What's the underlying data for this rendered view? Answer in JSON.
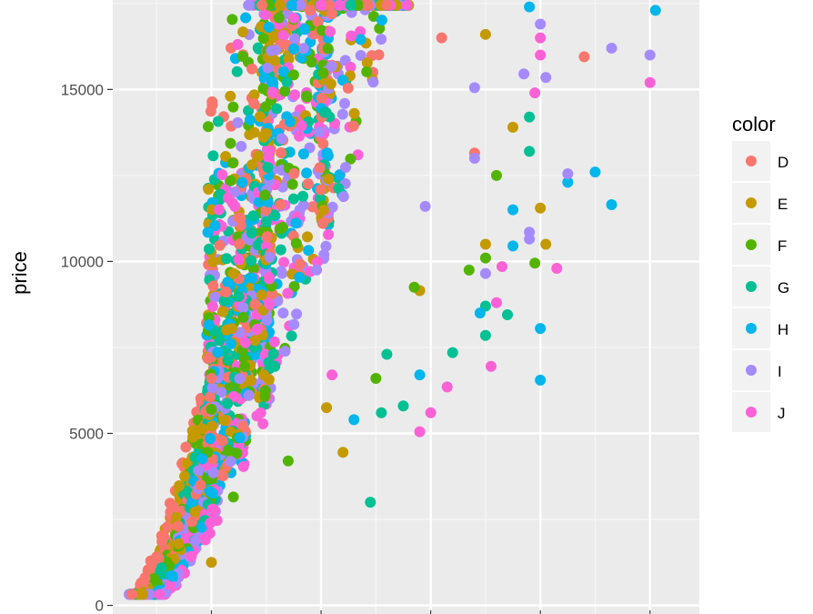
{
  "chart_data": {
    "type": "scatter",
    "title": "",
    "xlabel": "",
    "ylabel": "price",
    "ylim": [
      -250,
      17600
    ],
    "xlim": [
      0.1,
      5.45
    ],
    "y_ticks": [
      {
        "value": 0,
        "label": "0"
      },
      {
        "value": 5000,
        "label": "5000"
      },
      {
        "value": 10000,
        "label": "10000"
      },
      {
        "value": 15000,
        "label": "15000"
      }
    ],
    "x_major_grid": [
      1,
      2,
      3,
      4,
      5
    ],
    "x_minor_grid": [
      0.5,
      1.5,
      2.5,
      3.5,
      4.5
    ],
    "y_minor_grid": [
      2500,
      7500,
      12500,
      17500
    ],
    "grid": true,
    "panel_background": "#ebebeb",
    "legend": {
      "title": "color",
      "position": "right"
    },
    "series": [
      {
        "name": "D",
        "color": "#F8766D",
        "points": [
          [
            3.4,
            13150
          ],
          [
            4.4,
            15950
          ],
          [
            2.6,
            17450
          ],
          [
            1.9,
            17300
          ],
          [
            2.1,
            17200
          ],
          [
            3.1,
            16500
          ],
          [
            1.0,
            6600
          ],
          [
            0.7,
            2300
          ],
          [
            0.9,
            3500
          ],
          [
            1.25,
            9500
          ]
        ]
      },
      {
        "name": "E",
        "color": "#C49A00",
        "points": [
          [
            4.0,
            11550
          ],
          [
            4.05,
            10500
          ],
          [
            3.5,
            10500
          ],
          [
            2.9,
            9150
          ],
          [
            3.75,
            13900
          ],
          [
            2.05,
            5750
          ],
          [
            3.5,
            16600
          ],
          [
            1.0,
            1250
          ],
          [
            1.2,
            9650
          ],
          [
            2.2,
            4450
          ]
        ]
      },
      {
        "name": "F",
        "color": "#53B400",
        "points": [
          [
            3.6,
            12500
          ],
          [
            3.5,
            10100
          ],
          [
            3.95,
            9950
          ],
          [
            2.85,
            9250
          ],
          [
            3.35,
            9750
          ],
          [
            1.0,
            5700
          ],
          [
            2.5,
            6600
          ],
          [
            1.7,
            4200
          ],
          [
            1.2,
            3150
          ]
        ]
      },
      {
        "name": "G",
        "color": "#00C094",
        "points": [
          [
            3.9,
            14200
          ],
          [
            3.9,
            13200
          ],
          [
            3.5,
            8700
          ],
          [
            3.7,
            8450
          ],
          [
            3.5,
            7850
          ],
          [
            2.6,
            7300
          ],
          [
            2.75,
            5800
          ],
          [
            2.55,
            5600
          ],
          [
            3.2,
            7350
          ],
          [
            2.45,
            3000
          ]
        ]
      },
      {
        "name": "H",
        "color": "#00B6EB",
        "points": [
          [
            5.05,
            17300
          ],
          [
            4.5,
            12600
          ],
          [
            4.25,
            12300
          ],
          [
            4.65,
            11650
          ],
          [
            3.75,
            11500
          ],
          [
            3.75,
            10450
          ],
          [
            4.0,
            8050
          ],
          [
            4.0,
            6550
          ],
          [
            3.9,
            17400
          ],
          [
            3.45,
            8500
          ],
          [
            2.3,
            5400
          ],
          [
            2.9,
            6700
          ]
        ]
      },
      {
        "name": "I",
        "color": "#A58AFF",
        "points": [
          [
            4.0,
            16900
          ],
          [
            4.65,
            16200
          ],
          [
            5.0,
            16000
          ],
          [
            4.25,
            12550
          ],
          [
            4.05,
            15350
          ],
          [
            3.9,
            10850
          ],
          [
            3.9,
            10650
          ],
          [
            3.5,
            9650
          ],
          [
            3.85,
            15450
          ],
          [
            3.4,
            15050
          ],
          [
            3.4,
            13000
          ],
          [
            2.95,
            11600
          ]
        ]
      },
      {
        "name": "J",
        "color": "#FB61D7",
        "points": [
          [
            5.0,
            15200
          ],
          [
            4.15,
            9800
          ],
          [
            4.0,
            16500
          ],
          [
            4.0,
            16000
          ],
          [
            3.95,
            14900
          ],
          [
            3.65,
            9850
          ],
          [
            3.6,
            8800
          ],
          [
            3.15,
            6350
          ],
          [
            3.55,
            6950
          ],
          [
            2.9,
            5050
          ],
          [
            3.0,
            5600
          ],
          [
            2.1,
            6700
          ]
        ]
      }
    ]
  }
}
